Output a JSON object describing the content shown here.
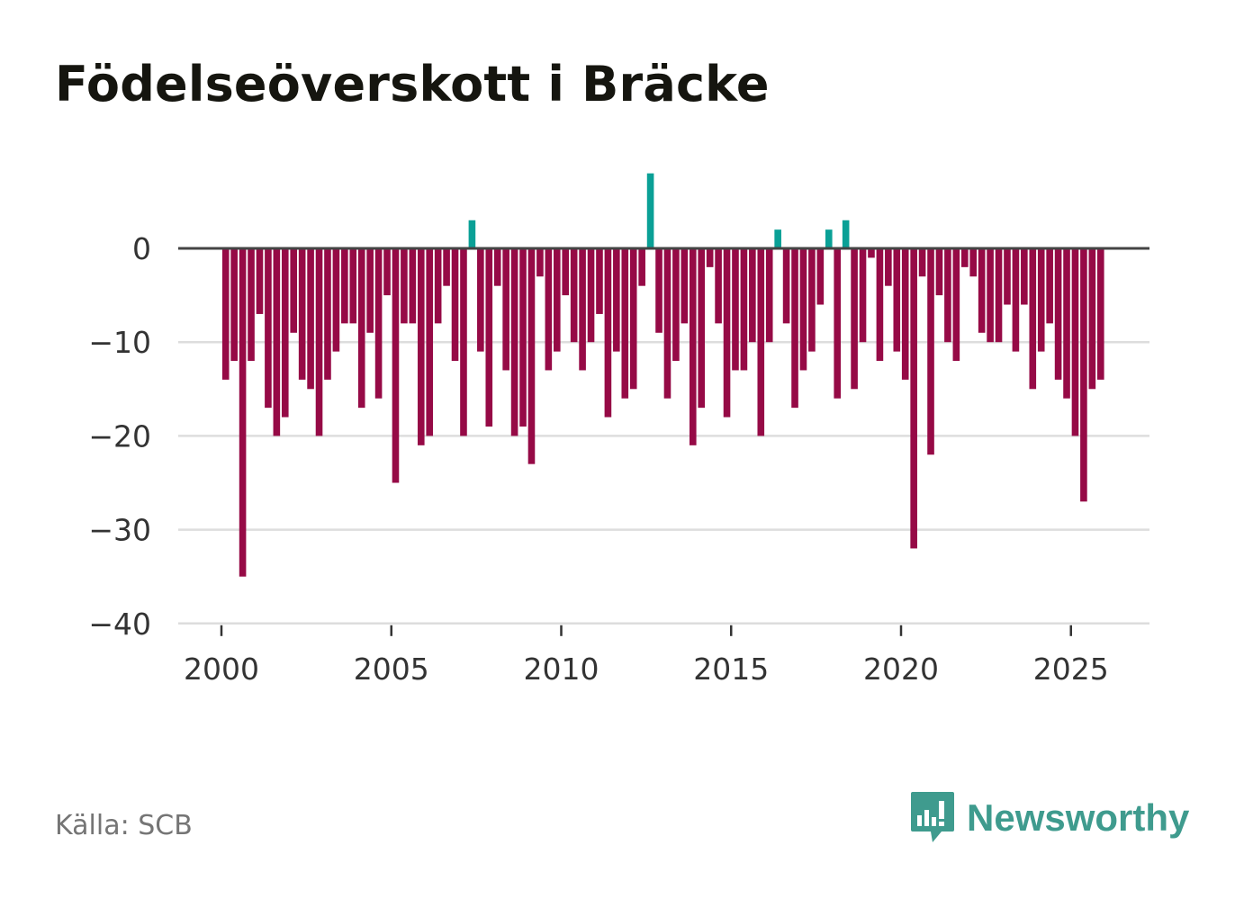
{
  "title": "Födelseöverskott i Bräcke",
  "source": "Källa: SCB",
  "brand": {
    "name": "Newsworthy",
    "icon": "newsworthy-logo-icon",
    "color": "#3f9b8e"
  },
  "colors": {
    "negative": "#960a46",
    "positive": "#0aa096",
    "zero_line": "#444444",
    "grid": "#dddddd"
  },
  "chart_data": {
    "type": "bar",
    "title": "Födelseöverskott i Bräcke",
    "xlabel": "",
    "ylabel": "",
    "frequency": "quarterly",
    "x_start": 2000,
    "x_ticks": [
      "2000",
      "2005",
      "2010",
      "2015",
      "2020",
      "2025"
    ],
    "y_ticks": [
      0,
      -10,
      -20,
      -30,
      -40
    ],
    "y_tick_labels": [
      "0",
      "−10",
      "−20",
      "−30",
      "−40"
    ],
    "ylim": [
      -40,
      8
    ],
    "xlim": [
      2000,
      2027.3
    ],
    "grid": true,
    "values": [
      -14,
      -12,
      -35,
      -12,
      -7,
      -17,
      -20,
      -18,
      -9,
      -14,
      -15,
      -20,
      -14,
      -11,
      -8,
      -8,
      -17,
      -9,
      -16,
      -5,
      -25,
      -8,
      -8,
      -21,
      -20,
      -8,
      -4,
      -12,
      -20,
      3,
      -11,
      -19,
      -4,
      -13,
      -20,
      -19,
      -23,
      -3,
      -13,
      -11,
      -5,
      -10,
      -13,
      -10,
      -7,
      -18,
      -11,
      -16,
      -15,
      -4,
      8,
      -9,
      -16,
      -12,
      -8,
      -21,
      -17,
      -2,
      -8,
      -18,
      -13,
      -13,
      -10,
      -20,
      -10,
      2,
      -8,
      -17,
      -13,
      -11,
      -6,
      2,
      -16,
      3,
      -15,
      -10,
      -1,
      -12,
      -4,
      -11,
      -14,
      -32,
      -3,
      -22,
      -5,
      -10,
      -12,
      -2,
      -3,
      -9,
      -10,
      -10,
      -6,
      -11,
      -6,
      -15,
      -11,
      -8,
      -14,
      -16,
      -20,
      -27,
      -15,
      -14
    ]
  }
}
